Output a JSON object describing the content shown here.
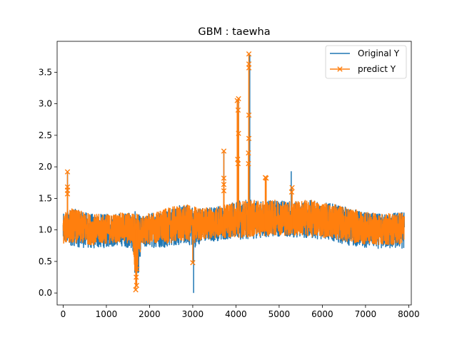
{
  "chart_data": {
    "type": "line",
    "title": "GBM : taewha",
    "xlabel": "",
    "ylabel": "",
    "xlim": [
      -140,
      8060
    ],
    "ylim": [
      -0.19,
      3.99
    ],
    "xticks": [
      0,
      1000,
      2000,
      3000,
      4000,
      5000,
      6000,
      7000,
      8000
    ],
    "yticks": [
      0.0,
      0.5,
      1.0,
      1.5,
      2.0,
      2.5,
      3.0,
      3.5
    ],
    "xtick_labels": [
      "0",
      "1000",
      "2000",
      "3000",
      "4000",
      "5000",
      "6000",
      "7000",
      "8000"
    ],
    "ytick_labels": [
      "0.0",
      "0.5",
      "1.0",
      "1.5",
      "2.0",
      "2.5",
      "3.0",
      "3.5"
    ],
    "grid": false,
    "legend_position": "top-right",
    "n_points": 7900,
    "series": [
      {
        "name": "Original Y",
        "color": "#1f77b4",
        "marker": "none",
        "envelope": {
          "x": [
            0,
            200,
            400,
            700,
            1000,
            1300,
            1600,
            1700,
            1800,
            2000,
            2300,
            2600,
            2900,
            3000,
            3200,
            3500,
            3800,
            4000,
            4300,
            4600,
            5000,
            5300,
            5600,
            6000,
            6300,
            6600,
            7000,
            7400,
            7900
          ],
          "upper": [
            1.25,
            1.35,
            1.3,
            1.25,
            1.25,
            1.27,
            1.28,
            1.3,
            1.2,
            1.27,
            1.32,
            1.38,
            1.4,
            1.38,
            1.35,
            1.38,
            1.4,
            1.45,
            1.48,
            1.45,
            1.48,
            1.45,
            1.48,
            1.45,
            1.4,
            1.35,
            1.28,
            1.25,
            1.3
          ],
          "lower": [
            0.75,
            0.75,
            0.72,
            0.7,
            0.72,
            0.75,
            0.7,
            0.0,
            0.7,
            0.72,
            0.72,
            0.75,
            0.78,
            0.7,
            0.8,
            0.82,
            0.85,
            0.85,
            0.85,
            0.88,
            0.9,
            0.88,
            0.87,
            0.85,
            0.82,
            0.75,
            0.72,
            0.7,
            0.7
          ]
        },
        "spikes": [
          {
            "x": 3020,
            "y": 0.0
          },
          {
            "x": 5280,
            "y": 1.93
          },
          {
            "x": 4320,
            "y": 3.78
          },
          {
            "x": 4060,
            "y": 3.07
          },
          {
            "x": 3720,
            "y": 2.25
          },
          {
            "x": 100,
            "y": 1.92
          }
        ]
      },
      {
        "name": "predict Y",
        "color": "#ff7f0e",
        "marker": "x",
        "envelope": {
          "x": [
            0,
            200,
            400,
            700,
            1000,
            1300,
            1600,
            1700,
            1800,
            2000,
            2300,
            2600,
            2900,
            3000,
            3200,
            3500,
            3800,
            4000,
            4300,
            4600,
            5000,
            5300,
            5600,
            6000,
            6300,
            6600,
            7000,
            7400,
            7900
          ],
          "upper": [
            1.25,
            1.35,
            1.3,
            1.25,
            1.25,
            1.27,
            1.28,
            1.3,
            1.2,
            1.27,
            1.32,
            1.38,
            1.4,
            1.38,
            1.35,
            1.38,
            1.4,
            1.45,
            1.48,
            1.45,
            1.48,
            1.45,
            1.48,
            1.45,
            1.4,
            1.35,
            1.28,
            1.25,
            1.3
          ],
          "lower": [
            0.78,
            0.8,
            0.78,
            0.76,
            0.78,
            0.8,
            0.76,
            0.05,
            0.76,
            0.78,
            0.78,
            0.8,
            0.82,
            0.75,
            0.84,
            0.86,
            0.88,
            0.88,
            0.88,
            0.9,
            0.92,
            0.9,
            0.9,
            0.88,
            0.86,
            0.8,
            0.77,
            0.76,
            0.76
          ]
        },
        "marked_points": [
          {
            "x": 100,
            "y": 1.92
          },
          {
            "x": 100,
            "y": 1.68
          },
          {
            "x": 100,
            "y": 1.63
          },
          {
            "x": 100,
            "y": 1.57
          },
          {
            "x": 3000,
            "y": 0.48
          },
          {
            "x": 3720,
            "y": 2.25
          },
          {
            "x": 3720,
            "y": 1.82
          },
          {
            "x": 3720,
            "y": 1.72
          },
          {
            "x": 3720,
            "y": 1.62
          },
          {
            "x": 4030,
            "y": 3.05
          },
          {
            "x": 4060,
            "y": 3.08
          },
          {
            "x": 4050,
            "y": 2.9
          },
          {
            "x": 4060,
            "y": 2.53
          },
          {
            "x": 4040,
            "y": 2.12
          },
          {
            "x": 4050,
            "y": 2.05
          },
          {
            "x": 4300,
            "y": 3.79
          },
          {
            "x": 4300,
            "y": 3.63
          },
          {
            "x": 4300,
            "y": 3.57
          },
          {
            "x": 4300,
            "y": 2.82
          },
          {
            "x": 4300,
            "y": 2.45
          },
          {
            "x": 4290,
            "y": 2.22
          },
          {
            "x": 4290,
            "y": 2.05
          },
          {
            "x": 4680,
            "y": 1.83
          },
          {
            "x": 4700,
            "y": 1.82
          },
          {
            "x": 5300,
            "y": 1.67
          },
          {
            "x": 5290,
            "y": 1.6
          },
          {
            "x": 1680,
            "y": 0.05
          },
          {
            "x": 1700,
            "y": 0.12
          },
          {
            "x": 1690,
            "y": 0.25
          },
          {
            "x": 1710,
            "y": 0.38
          }
        ]
      }
    ]
  }
}
